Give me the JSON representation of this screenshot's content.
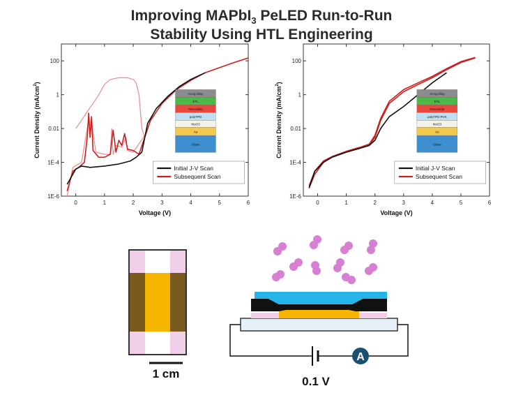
{
  "title": {
    "line1_pre": "Improving MAPbI",
    "line1_sub": "3",
    "line1_post": " PeLED Run-to-Run",
    "line2": "Stability Using HTL Engineering"
  },
  "colors": {
    "initial": "#111111",
    "subsequent_dark": "#c8201e",
    "subsequent_light": "#ee8a8a",
    "glass": "#3d8fd0",
    "au": "#f2c94c",
    "moox": "#f4f2ea",
    "htl": "#bfe0f2",
    "perovskite": "#e8493c",
    "etl": "#4cb848",
    "alag": "#8c8c8c",
    "mask_brown": "#7a5a1c",
    "mask_gold": "#f6b500",
    "mask_pink": "#f2cfe8",
    "particles": "#d77fd3",
    "device_blue": "#25b4e8",
    "ammeter": "#1d4f73"
  },
  "chart_data": [
    {
      "type": "line",
      "panel": "left",
      "xlabel": "Voltage (V)",
      "ylabel_pre": "Current Density (mA/cm",
      "ylabel_sup": "2",
      "ylabel_post": ")",
      "xlim": [
        -0.5,
        6
      ],
      "ylim": [
        1e-06,
        1000
      ],
      "yscale": "log",
      "xticks": [
        "0",
        "1",
        "2",
        "3",
        "4",
        "5",
        "6"
      ],
      "yticks": [
        "1E-6",
        "1E-4",
        "0.01",
        "1",
        "100"
      ],
      "legend_position": "bottom-right",
      "stack_layers": [
        "Al:Ag Alloy",
        "ETL",
        "Perovskite",
        "polyTPD",
        "MoO3",
        "Au",
        "Glass"
      ],
      "series": [
        {
          "name": "Initial J-V Scan",
          "role": "initial",
          "x": [
            -0.3,
            -0.2,
            0,
            0.2,
            0.5,
            1,
            1.5,
            1.9,
            2.1,
            2.3,
            2.5,
            2.8,
            3.2,
            3.6,
            4,
            4.5
          ],
          "y": [
            5e-06,
            1e-05,
            4e-05,
            6e-05,
            5e-05,
            6e-05,
            8e-05,
            0.00012,
            0.0002,
            0.0004,
            0.02,
            0.15,
            0.8,
            3,
            8,
            20
          ]
        },
        {
          "name": "Subsequent Scan",
          "role": "subsequent",
          "x": [
            -0.3,
            -0.1,
            0.1,
            0.3,
            0.4,
            0.45,
            0.5,
            0.55,
            0.6,
            0.8,
            1,
            1.2,
            1.3,
            1.4,
            1.5,
            1.6,
            1.7,
            1.8,
            2,
            2.2,
            2.4,
            2.6,
            3,
            3.5,
            4,
            4.5,
            5,
            5.5,
            6
          ],
          "y": [
            2e-06,
            3e-05,
            5e-05,
            0.0001,
            0.003,
            0.08,
            0.003,
            0.05,
            0.0005,
            0.0002,
            0.0002,
            0.0003,
            0.008,
            0.0004,
            0.002,
            0.001,
            0.005,
            0.0006,
            0.0005,
            0.0003,
            0.003,
            0.03,
            0.3,
            2,
            7,
            20,
            40,
            80,
            150
          ]
        },
        {
          "name": "",
          "role": "subsequent_light",
          "x": [
            0,
            0.2,
            0.4,
            0.6,
            0.8,
            1,
            1.2,
            1.5,
            1.8,
            2,
            2.1,
            2.2,
            2.3,
            2.4
          ],
          "y": [
            0.01,
            0.03,
            0.1,
            0.3,
            1,
            4,
            8,
            10,
            10,
            8,
            5,
            1,
            0.01,
            0.003
          ]
        },
        {
          "name": "",
          "role": "subsequent_light",
          "x": [
            -0.3,
            -0.1,
            0.2,
            0.4,
            0.45,
            0.5,
            0.55,
            0.7,
            1,
            1.2,
            1.25,
            1.3,
            1.4,
            1.6,
            1.75,
            1.8,
            2,
            2.4
          ],
          "y": [
            1e-06,
            5e-05,
            0.0001,
            0.01,
            0.04,
            0.005,
            0.02,
            0.0004,
            0.0003,
            0.0003,
            0.01,
            0.0003,
            0.001,
            0.0008,
            0.003,
            0.0005,
            0.0004,
            0.004
          ]
        }
      ]
    },
    {
      "type": "line",
      "panel": "right",
      "xlabel": "Voltage (V)",
      "ylabel_pre": "Current Density (mA/cm",
      "ylabel_sup": "2",
      "ylabel_post": ")",
      "xlim": [
        -0.5,
        6
      ],
      "ylim": [
        1e-06,
        1000
      ],
      "yscale": "log",
      "xticks": [
        "0",
        "1",
        "2",
        "3",
        "4",
        "5",
        "6"
      ],
      "yticks": [
        "1E-6",
        "1E-4",
        "0.01",
        "1",
        "100"
      ],
      "legend_position": "bottom-right",
      "stack_layers": [
        "Al:Ag Alloy",
        "ETL",
        "Perovskite",
        "polyTPD:PVK",
        "MoO3",
        "Au",
        "Glass"
      ],
      "series": [
        {
          "name": "Initial J-V Scan",
          "role": "initial",
          "x": [
            -0.3,
            -0.1,
            0.2,
            0.5,
            1,
            1.5,
            1.8,
            2,
            2.2,
            2.5,
            3,
            3.5,
            4,
            4.5
          ],
          "y": [
            3e-06,
            3e-05,
            0.0001,
            0.0002,
            0.0004,
            0.0007,
            0.001,
            0.002,
            0.01,
            0.05,
            0.2,
            1,
            5,
            20
          ]
        },
        {
          "name": "Subsequent Scan",
          "role": "subsequent",
          "x": [
            -0.3,
            -0.1,
            0.2,
            0.5,
            1,
            1.5,
            1.8,
            2,
            2.2,
            2.5,
            3,
            3.5,
            4,
            4.5,
            5,
            5.5
          ],
          "y": [
            3e-06,
            2e-05,
            0.0001,
            0.0002,
            0.0004,
            0.0007,
            0.001,
            0.003,
            0.03,
            0.3,
            1.5,
            4,
            10,
            30,
            80,
            150
          ]
        },
        {
          "name": "",
          "role": "subsequent",
          "x": [
            -0.3,
            -0.1,
            0.2,
            0.5,
            1,
            1.5,
            1.8,
            2,
            2.2,
            2.5,
            3,
            3.5,
            4,
            4.5,
            5,
            5.5
          ],
          "y": [
            4e-06,
            3e-05,
            0.00012,
            0.00022,
            0.00045,
            0.0008,
            0.0012,
            0.004,
            0.04,
            0.4,
            2,
            5,
            12,
            35,
            90,
            160
          ]
        }
      ]
    }
  ],
  "diagram": {
    "scale_bar_label": "1 cm",
    "voltage_label": "0.1 V",
    "ammeter_label": "A"
  }
}
